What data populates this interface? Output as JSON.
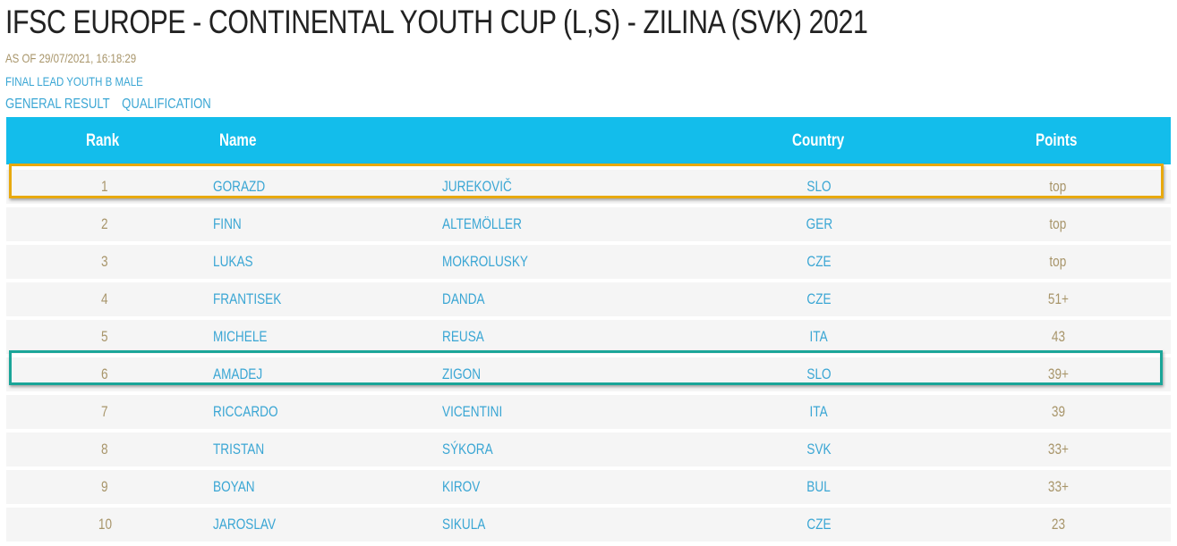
{
  "header": {
    "title": "IFSC EUROPE - CONTINENTAL YOUTH CUP (L,S) - ZILINA (SVK) 2021",
    "as_of": "AS OF 29/07/2021, 16:18:29",
    "event": "FINAL LEAD YOUTH B MALE"
  },
  "subnav": {
    "general_result": "GENERAL RESULT",
    "qualification": "QUALIFICATION"
  },
  "table": {
    "columns": {
      "rank": "Rank",
      "name": "Name",
      "country": "Country",
      "points": "Points"
    },
    "rows": [
      {
        "rank": "1",
        "first": "GORAZD",
        "last": "JUREKOVIČ",
        "country": "SLO",
        "points": "top"
      },
      {
        "rank": "2",
        "first": "FINN",
        "last": "ALTEMÖLLER",
        "country": "GER",
        "points": "top"
      },
      {
        "rank": "3",
        "first": "LUKAS",
        "last": "MOKROLUSKY",
        "country": "CZE",
        "points": "top"
      },
      {
        "rank": "4",
        "first": "FRANTISEK",
        "last": "DANDA",
        "country": "CZE",
        "points": "51+"
      },
      {
        "rank": "5",
        "first": "MICHELE",
        "last": "REUSA",
        "country": "ITA",
        "points": "43"
      },
      {
        "rank": "6",
        "first": "AMADEJ",
        "last": "ZIGON",
        "country": "SLO",
        "points": "39+"
      },
      {
        "rank": "7",
        "first": "RICCARDO",
        "last": "VICENTINI",
        "country": "ITA",
        "points": "39"
      },
      {
        "rank": "8",
        "first": "TRISTAN",
        "last": "SÝKORA",
        "country": "SVK",
        "points": "33+"
      },
      {
        "rank": "9",
        "first": "BOYAN",
        "last": "KIROV",
        "country": "BUL",
        "points": "33+"
      },
      {
        "rank": "10",
        "first": "JAROSLAV",
        "last": "SIKULA",
        "country": "CZE",
        "points": "23"
      }
    ]
  },
  "colors": {
    "header_bg": "#13bdeb",
    "link": "#3aa6d4",
    "muted": "#a8956a",
    "highlight_gold": "#e8a90e",
    "highlight_teal": "#1aa598"
  }
}
